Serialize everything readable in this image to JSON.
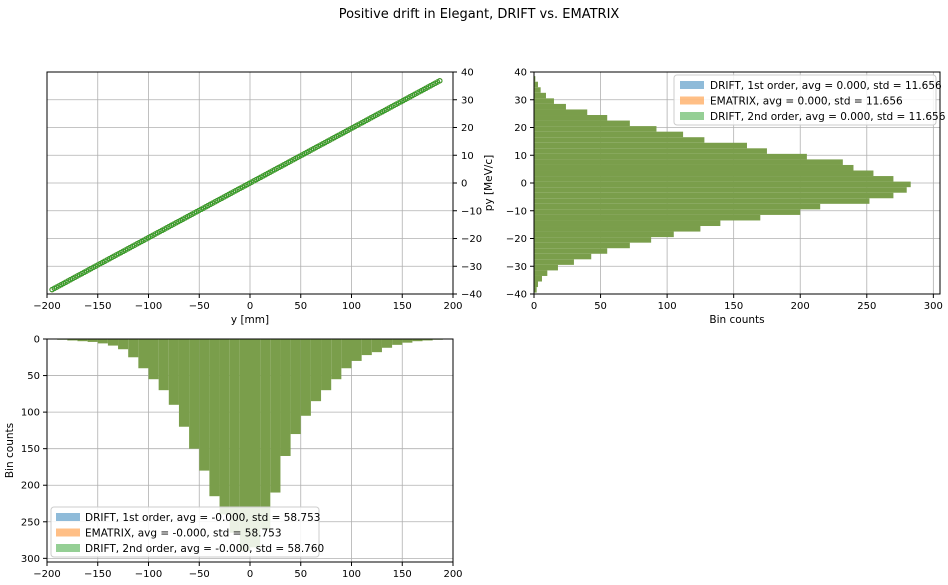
{
  "figure": {
    "title": "Positive drift in Elegant, DRIFT vs. EMATRIX"
  },
  "colors": {
    "drift1": "#1f77b4",
    "ematrix": "#ff7f0e",
    "drift2": "#2ca02c",
    "overlap": "#7a9e4b",
    "grid": "#b0b0b0"
  },
  "chart_data": [
    {
      "type": "scatter",
      "xlabel": "y [mm]",
      "ylabel": "py [MeV/c]",
      "xlim": [
        -200,
        200
      ],
      "ylim": [
        -40,
        40
      ],
      "xticks": [
        -200,
        -150,
        -100,
        -50,
        0,
        50,
        100,
        150,
        200
      ],
      "yticks": [
        -40,
        -30,
        -20,
        -10,
        0,
        10,
        20,
        30,
        40
      ],
      "y_axis_side": "right",
      "grid": true,
      "marker": "open-circle",
      "series": [
        {
          "color": "#1f77b4",
          "x_range": [
            -195,
            187
          ],
          "slope": 0.197
        },
        {
          "color": "#ff7f0e",
          "x_range": [
            -195,
            187
          ],
          "slope": 0.197
        },
        {
          "color": "#2ca02c",
          "x_range": [
            -195,
            187
          ],
          "slope": 0.197
        }
      ]
    },
    {
      "type": "bar",
      "orientation": "horizontal",
      "xlabel": "Bin counts",
      "ylabel": "",
      "xlim": [
        0,
        305
      ],
      "ylim": [
        -40,
        40
      ],
      "xticks": [
        0,
        50,
        100,
        150,
        200,
        250,
        300
      ],
      "yticks": [
        -40,
        -30,
        -20,
        -10,
        0,
        10,
        20,
        30,
        40
      ],
      "grid": true,
      "legend": "top-right",
      "series": [
        {
          "name": "DRIFT, 1st order, avg = 0.000, std = 11.656",
          "color": "#1f77b4"
        },
        {
          "name": "EMATRIX, avg = 0.000, std = 11.656",
          "color": "#ff7f0e"
        },
        {
          "name": "DRIFT, 2nd order, avg = 0.000, std = 11.656",
          "color": "#2ca02c"
        }
      ],
      "bin_centers": [
        -38.5,
        -36.5,
        -34.5,
        -32.5,
        -30.5,
        -28.5,
        -26.5,
        -24.5,
        -22.5,
        -20.5,
        -18.5,
        -16.5,
        -14.5,
        -12.5,
        -10.5,
        -8.5,
        -6.5,
        -4.5,
        -2.5,
        -0.5,
        1.5,
        3.5,
        5.5,
        7.5,
        9.5,
        11.5,
        13.5,
        15.5,
        17.5,
        19.5,
        21.5,
        23.5,
        25.5,
        27.5,
        29.5,
        31.5,
        33.5,
        35.5,
        37.5
      ],
      "values": [
        2,
        3,
        6,
        10,
        18,
        30,
        43,
        55,
        72,
        88,
        105,
        125,
        140,
        170,
        200,
        215,
        252,
        270,
        280,
        283,
        270,
        255,
        240,
        232,
        205,
        175,
        160,
        128,
        112,
        92,
        72,
        55,
        40,
        24,
        15,
        9,
        5,
        3,
        1
      ]
    },
    {
      "type": "bar",
      "orientation": "vertical-inverted",
      "xlabel": "",
      "ylabel": "Bin counts",
      "xlim": [
        -200,
        200
      ],
      "ylim": [
        305,
        0
      ],
      "xticks": [
        -200,
        -150,
        -100,
        -50,
        0,
        50,
        100,
        150,
        200
      ],
      "yticks": [
        0,
        50,
        100,
        150,
        200,
        250,
        300
      ],
      "grid": true,
      "legend": "lower-left",
      "series": [
        {
          "name": "DRIFT, 1st order, avg = -0.000, std = 58.753",
          "color": "#1f77b4"
        },
        {
          "name": "EMATRIX, avg = -0.000, std = 58.753",
          "color": "#ff7f0e"
        },
        {
          "name": "DRIFT, 2nd order, avg = -0.000, std = 58.760",
          "color": "#2ca02c"
        }
      ],
      "bin_centers": [
        -185,
        -175,
        -165,
        -155,
        -145,
        -135,
        -125,
        -115,
        -105,
        -95,
        -85,
        -75,
        -65,
        -55,
        -45,
        -35,
        -25,
        -15,
        -5,
        5,
        15,
        25,
        35,
        45,
        55,
        65,
        75,
        85,
        95,
        105,
        115,
        125,
        135,
        145,
        155,
        165,
        175,
        185
      ],
      "values": [
        1,
        2,
        3,
        4,
        6,
        9,
        14,
        25,
        40,
        55,
        70,
        90,
        120,
        150,
        180,
        215,
        240,
        265,
        290,
        285,
        260,
        210,
        160,
        130,
        105,
        85,
        70,
        55,
        40,
        30,
        22,
        18,
        12,
        8,
        5,
        3,
        2,
        1
      ]
    }
  ]
}
